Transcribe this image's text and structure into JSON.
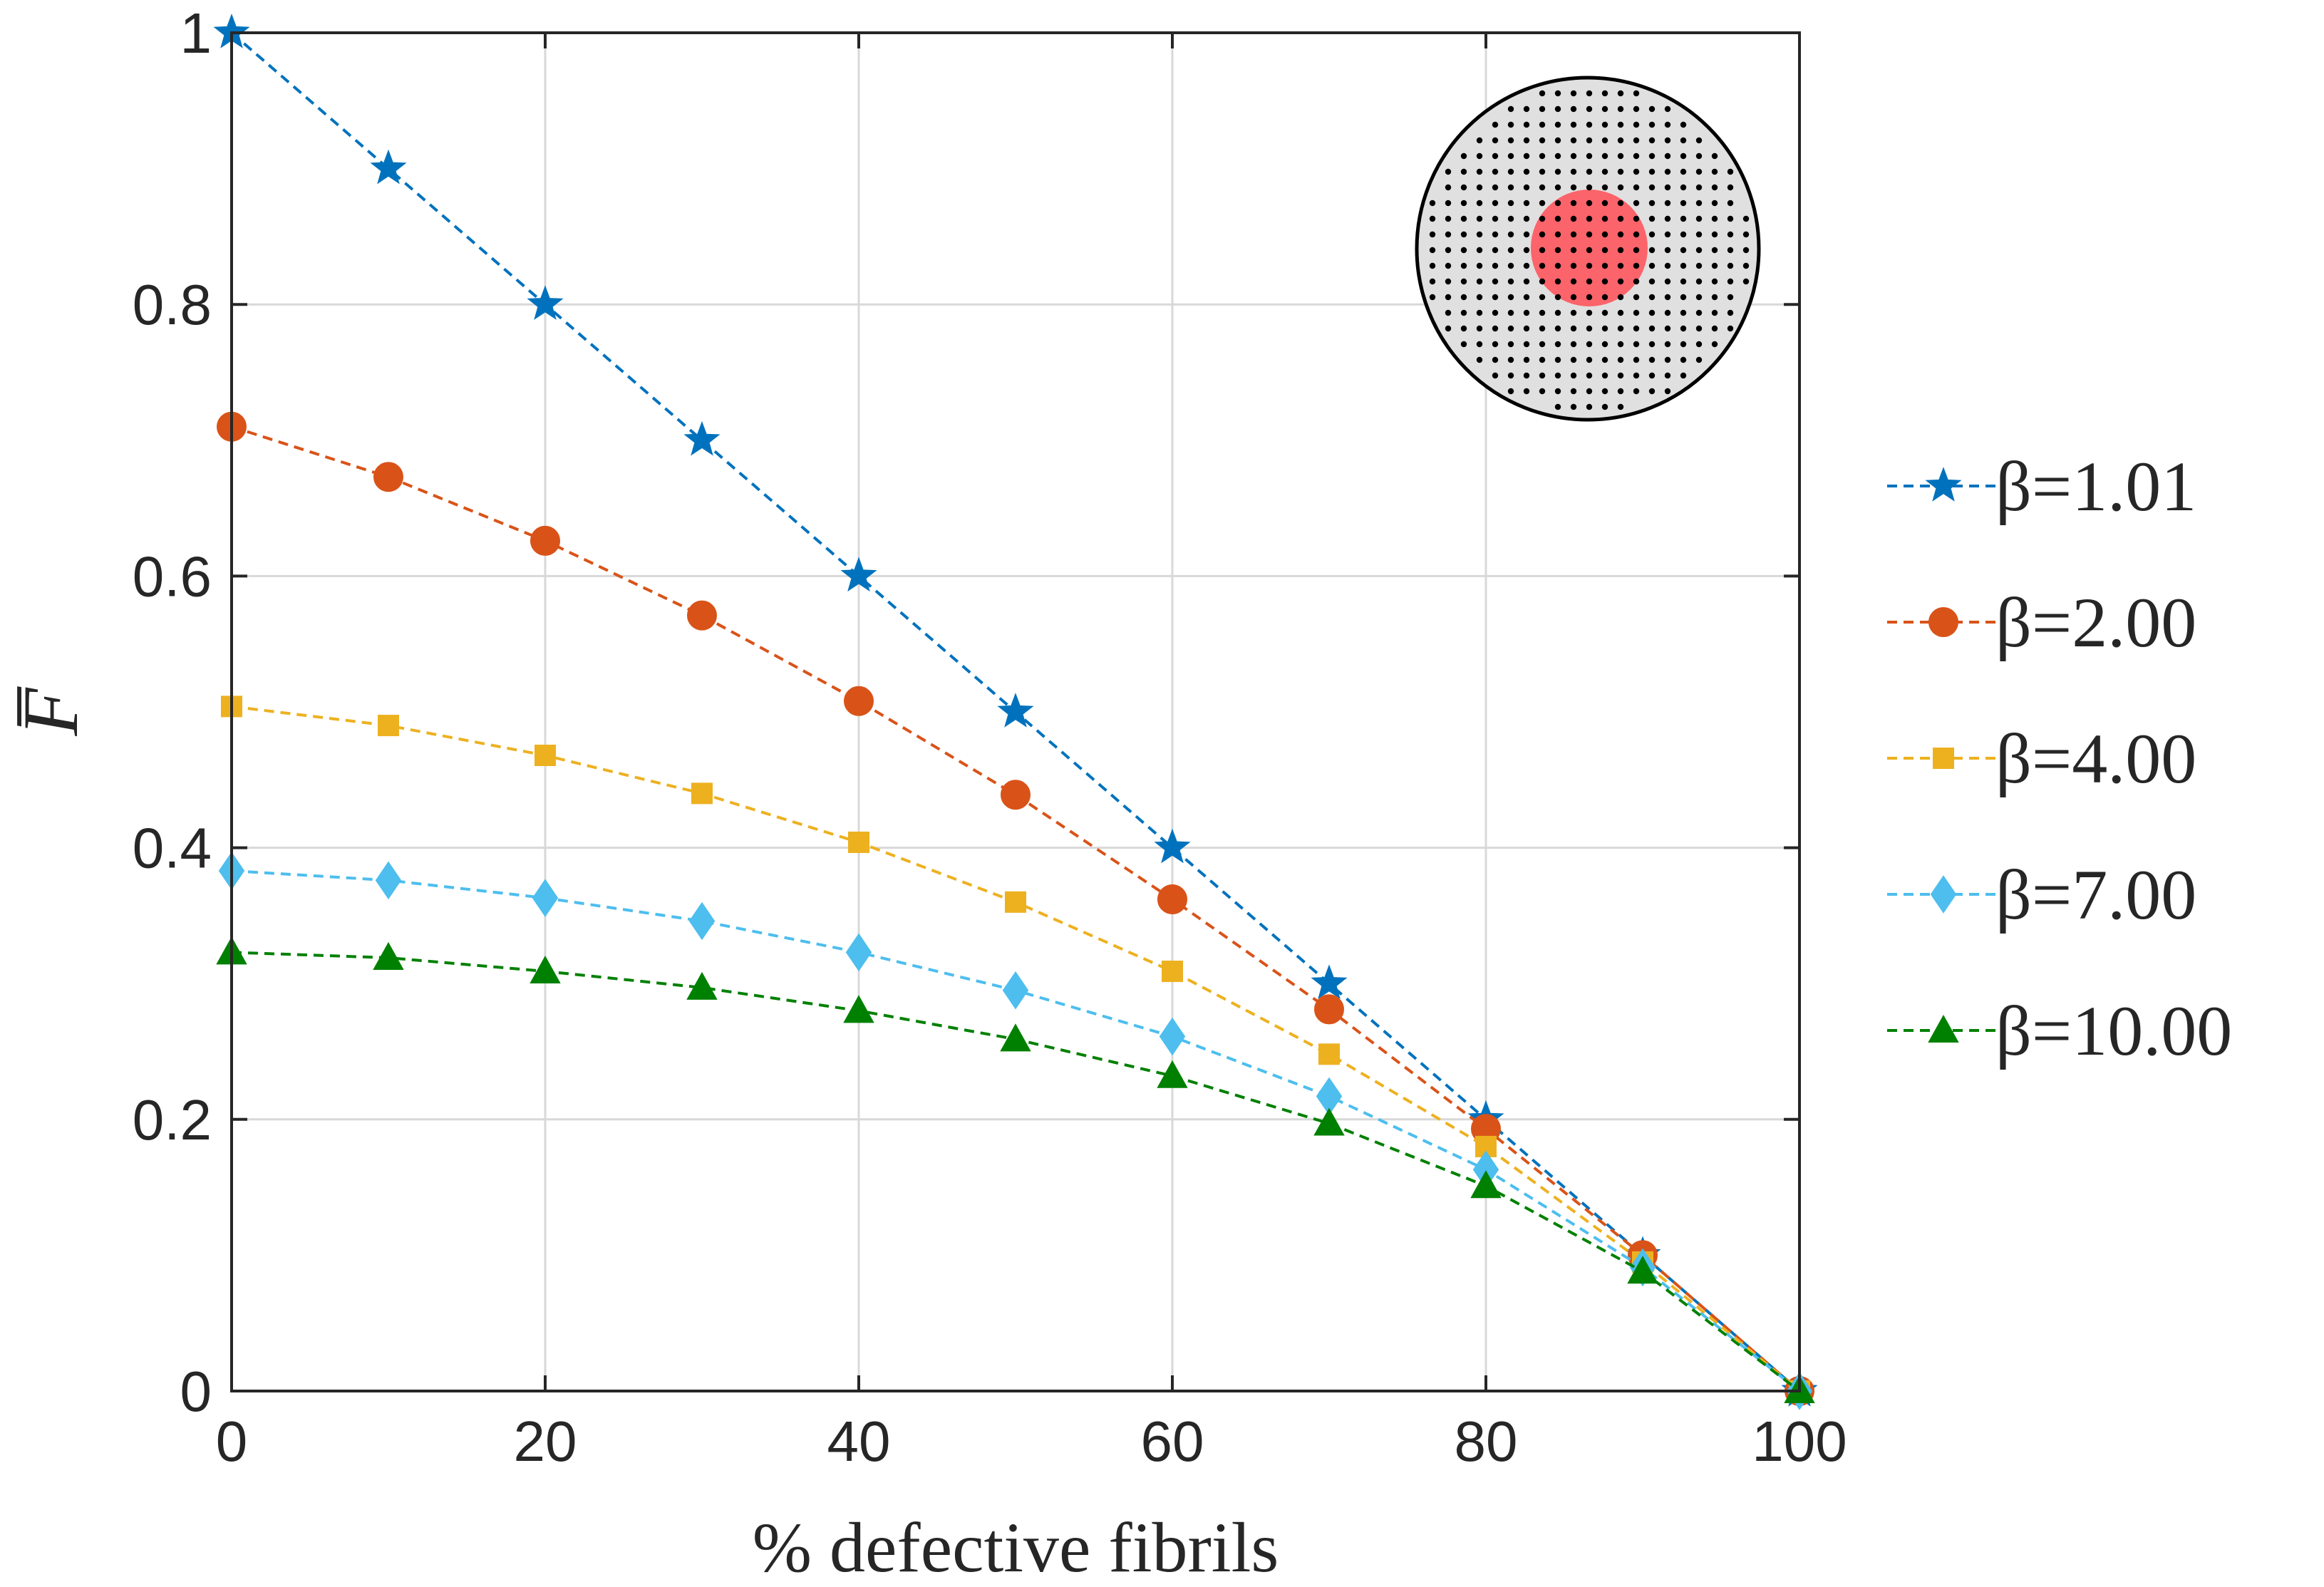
{
  "chart_data": {
    "type": "line",
    "xlabel": "% defective fibrils",
    "ylabel": "F̅",
    "xlim": [
      0,
      100
    ],
    "ylim": [
      0,
      1
    ],
    "xticks": [
      "0",
      "20",
      "40",
      "60",
      "80",
      "100"
    ],
    "yticks": [
      "0",
      "0.2",
      "0.4",
      "0.6",
      "0.8",
      "1"
    ],
    "grid": true,
    "legend_position": "outside-right",
    "x": [
      0,
      10,
      20,
      30,
      40,
      50,
      60,
      70,
      80,
      90,
      100
    ],
    "series": [
      {
        "name": "β=1.01",
        "marker": "star",
        "color": "#0072BD",
        "values": [
          1.0,
          0.9,
          0.8,
          0.7,
          0.6,
          0.5,
          0.4,
          0.3,
          0.2,
          0.1,
          0.0
        ]
      },
      {
        "name": "β=2.00",
        "marker": "circle",
        "color": "#D95319",
        "values": [
          0.71,
          0.673,
          0.626,
          0.571,
          0.508,
          0.439,
          0.362,
          0.281,
          0.193,
          0.1,
          0.0
        ]
      },
      {
        "name": "β=4.00",
        "marker": "square",
        "color": "#EDB120",
        "values": [
          0.504,
          0.49,
          0.468,
          0.44,
          0.404,
          0.36,
          0.309,
          0.248,
          0.18,
          0.095,
          0.0
        ]
      },
      {
        "name": "β=7.00",
        "marker": "diamond",
        "color": "#4DBEEE",
        "values": [
          0.383,
          0.376,
          0.363,
          0.346,
          0.323,
          0.295,
          0.261,
          0.217,
          0.163,
          0.091,
          0.0
        ]
      },
      {
        "name": "β=10.00",
        "marker": "triangle",
        "color": "#008000",
        "values": [
          0.323,
          0.319,
          0.309,
          0.297,
          0.28,
          0.259,
          0.232,
          0.197,
          0.151,
          0.088,
          0.0
        ]
      }
    ]
  },
  "inset": {
    "outer_fill": "#e0e0e0",
    "outer_stroke": "#000000",
    "highlight_color": "#ff4d55",
    "dot_color": "#000000"
  }
}
